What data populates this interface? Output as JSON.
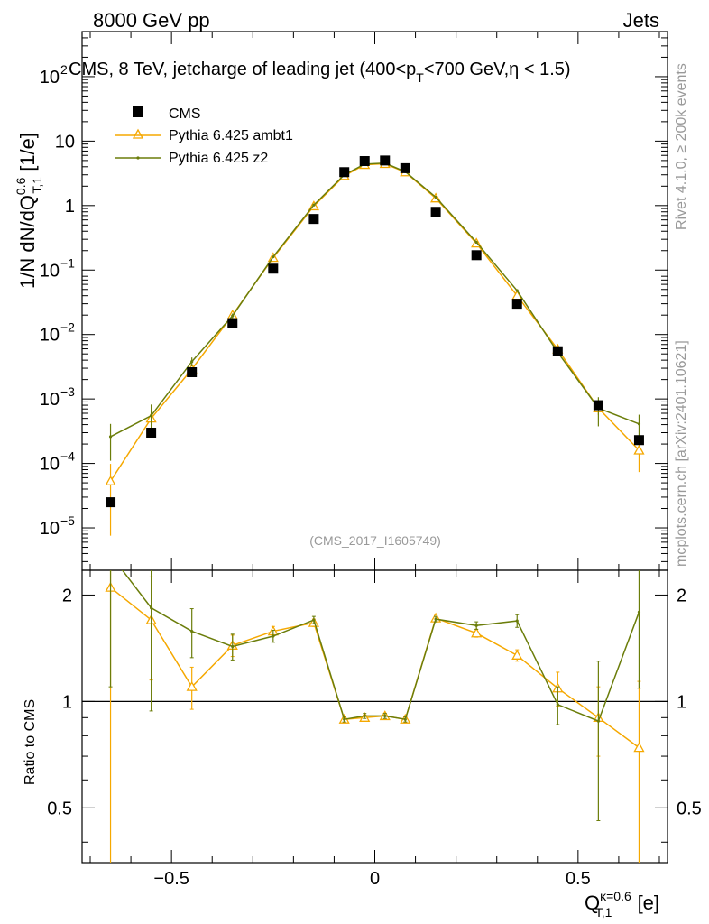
{
  "header": {
    "left": "8000 GeV pp",
    "right": "Jets"
  },
  "side_labels": {
    "rivet": "Rivet 4.1.0, ≥ 200k events",
    "mcplots": "mcplots.cern.ch [arXiv:2401.10621]"
  },
  "chart_data": {
    "type": "scatter",
    "title": "CMS, 8 TeV, jetcharge of leading jet (400<p",
    "title_sub": "T",
    "title_tail": "<700 GeV,η < 1.5)",
    "watermark": "(CMS_2017_I1605749)",
    "ylabel_main": "1/N dN/dQ",
    "ylabel_sup": "0.6",
    "ylabel_sub": "T,1",
    "ylabel_unit": " [1/e]",
    "ylabel_ratio": "Ratio to CMS",
    "xlabel": "Q",
    "xlabel_sup": "κ=0.6",
    "xlabel_sub": "T,1",
    "xlabel_unit": " [e]",
    "xlim": [
      -0.72,
      0.72
    ],
    "ylim_log": [
      2.2e-06,
      500
    ],
    "ratio_ylim": [
      0.35,
      2.35
    ],
    "x_ticks": [
      {
        "v": -0.5,
        "label": "−0.5"
      },
      {
        "v": 0,
        "label": "0"
      },
      {
        "v": 0.5,
        "label": "0.5"
      }
    ],
    "y_ticks": [
      {
        "e": 2,
        "label": "10",
        "sup": "2"
      },
      {
        "e": 1,
        "label": "10",
        "sup": ""
      },
      {
        "e": 0,
        "label": "1",
        "sup": ""
      },
      {
        "e": -1,
        "label": "10",
        "sup": "−1"
      },
      {
        "e": -2,
        "label": "10",
        "sup": "−2"
      },
      {
        "e": -3,
        "label": "10",
        "sup": "−3"
      },
      {
        "e": -4,
        "label": "10",
        "sup": "−4"
      },
      {
        "e": -5,
        "label": "10",
        "sup": "−5"
      }
    ],
    "ratio_ticks": [
      {
        "v": 2,
        "label": "2"
      },
      {
        "v": 1,
        "label": "1"
      },
      {
        "v": 0.5,
        "label": "0.5"
      }
    ],
    "cms": {
      "name": "CMS",
      "color": "#000000",
      "x": [
        -0.65,
        -0.55,
        -0.45,
        -0.35,
        -0.25,
        -0.15,
        -0.075,
        -0.025,
        0.025,
        0.075,
        0.15,
        0.25,
        0.35,
        0.45,
        0.55,
        0.65
      ],
      "y": [
        2.5e-05,
        0.0003,
        0.0026,
        0.015,
        0.105,
        0.62,
        3.3,
        4.9,
        5.0,
        3.8,
        0.8,
        0.17,
        0.03,
        0.0055,
        0.0008,
        0.00023
      ]
    },
    "series": [
      {
        "name": "Pythia 6.425 ambt1",
        "color": "#f5a800",
        "marker": "triangle",
        "x": [
          -0.65,
          -0.55,
          -0.45,
          -0.35,
          -0.25,
          -0.15,
          -0.075,
          -0.025,
          0.025,
          0.075,
          0.15,
          0.25,
          0.35,
          0.45,
          0.55,
          0.65
        ],
        "y": [
          5.3e-05,
          0.0005,
          0.0029,
          0.02,
          0.155,
          0.98,
          2.9,
          4.3,
          4.45,
          3.3,
          1.3,
          0.26,
          0.04,
          0.0059,
          0.00072,
          0.00016
        ],
        "ratio": [
          2.1,
          1.7,
          1.1,
          1.44,
          1.58,
          1.67,
          0.89,
          0.9,
          0.91,
          0.89,
          1.72,
          1.56,
          1.35,
          1.09,
          0.9,
          0.74
        ],
        "ratio_err": [
          1.8,
          0.55,
          0.15,
          0.1,
          0.05,
          0.04,
          0.015,
          0.015,
          0.015,
          0.015,
          0.03,
          0.04,
          0.05,
          0.12,
          0.2,
          0.4
        ]
      },
      {
        "name": "Pythia 6.425 z2",
        "color": "#6b7d0a",
        "marker": "dot",
        "x": [
          -0.65,
          -0.55,
          -0.45,
          -0.35,
          -0.25,
          -0.15,
          -0.075,
          -0.025,
          0.025,
          0.075,
          0.15,
          0.25,
          0.35,
          0.45,
          0.55,
          0.65
        ],
        "y": [
          0.00026,
          0.00055,
          0.0038,
          0.0195,
          0.16,
          1.02,
          3.0,
          4.4,
          4.55,
          3.35,
          1.35,
          0.27,
          0.048,
          0.0053,
          0.00072,
          0.00041
        ],
        "ratio": [
          2.6,
          1.84,
          1.58,
          1.43,
          1.53,
          1.7,
          0.89,
          0.91,
          0.91,
          0.89,
          1.71,
          1.64,
          1.69,
          0.98,
          0.88,
          1.79
        ],
        "ratio_err": [
          1.5,
          0.9,
          0.25,
          0.12,
          0.06,
          0.04,
          0.015,
          0.015,
          0.015,
          0.015,
          0.03,
          0.04,
          0.07,
          0.12,
          0.42,
          0.7
        ]
      }
    ]
  }
}
